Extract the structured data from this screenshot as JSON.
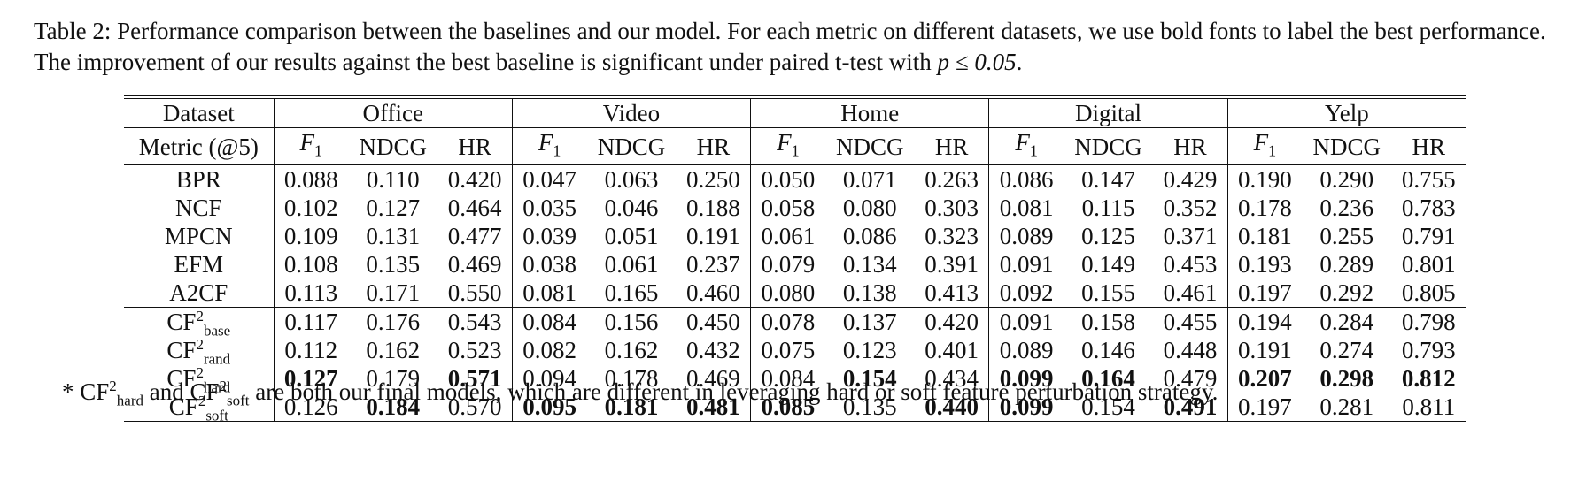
{
  "caption": {
    "prefix": "Table 2: Performance comparison between the baselines and our model. For each metric on different datasets, we use bold fonts to label the best performance. The improvement of our results against the best baseline is significant under paired t-test with ",
    "math": "p ≤ 0.05",
    "suffix": "."
  },
  "table": {
    "dataset_label": "Dataset",
    "metric_label": "Metric (@5)",
    "datasets": [
      "Office",
      "Video",
      "Home",
      "Digital",
      "Yelp"
    ],
    "metrics": [
      {
        "main": "F",
        "sub": "1",
        "italic": true
      },
      {
        "main": "NDCG",
        "sub": "",
        "italic": false
      },
      {
        "main": "HR",
        "sub": "",
        "italic": false
      }
    ],
    "baseline_rows": [
      {
        "name": "BPR",
        "values": [
          "0.088",
          "0.110",
          "0.420",
          "0.047",
          "0.063",
          "0.250",
          "0.050",
          "0.071",
          "0.263",
          "0.086",
          "0.147",
          "0.429",
          "0.190",
          "0.290",
          "0.755"
        ],
        "bold": []
      },
      {
        "name": "NCF",
        "values": [
          "0.102",
          "0.127",
          "0.464",
          "0.035",
          "0.046",
          "0.188",
          "0.058",
          "0.080",
          "0.303",
          "0.081",
          "0.115",
          "0.352",
          "0.178",
          "0.236",
          "0.783"
        ],
        "bold": []
      },
      {
        "name": "MPCN",
        "values": [
          "0.109",
          "0.131",
          "0.477",
          "0.039",
          "0.051",
          "0.191",
          "0.061",
          "0.086",
          "0.323",
          "0.089",
          "0.125",
          "0.371",
          "0.181",
          "0.255",
          "0.791"
        ],
        "bold": []
      },
      {
        "name": "EFM",
        "values": [
          "0.108",
          "0.135",
          "0.469",
          "0.038",
          "0.061",
          "0.237",
          "0.079",
          "0.134",
          "0.391",
          "0.091",
          "0.149",
          "0.453",
          "0.193",
          "0.289",
          "0.801"
        ],
        "bold": []
      },
      {
        "name": "A2CF",
        "values": [
          "0.113",
          "0.171",
          "0.550",
          "0.081",
          "0.165",
          "0.460",
          "0.080",
          "0.138",
          "0.413",
          "0.092",
          "0.155",
          "0.461",
          "0.197",
          "0.292",
          "0.805"
        ],
        "bold": []
      }
    ],
    "model_rows": [
      {
        "name": "CF",
        "sup": "2",
        "sub": "base",
        "values": [
          "0.117",
          "0.176",
          "0.543",
          "0.084",
          "0.156",
          "0.450",
          "0.078",
          "0.137",
          "0.420",
          "0.091",
          "0.158",
          "0.455",
          "0.194",
          "0.284",
          "0.798"
        ],
        "bold": []
      },
      {
        "name": "CF",
        "sup": "2",
        "sub": "rand",
        "values": [
          "0.112",
          "0.162",
          "0.523",
          "0.082",
          "0.162",
          "0.432",
          "0.075",
          "0.123",
          "0.401",
          "0.089",
          "0.146",
          "0.448",
          "0.191",
          "0.274",
          "0.793"
        ],
        "bold": []
      },
      {
        "name": "CF",
        "sup": "2",
        "sub": "hard",
        "values": [
          "0.127",
          "0.179",
          "0.571",
          "0.094",
          "0.178",
          "0.469",
          "0.084",
          "0.154",
          "0.434",
          "0.099",
          "0.164",
          "0.479",
          "0.207",
          "0.298",
          "0.812"
        ],
        "bold": [
          0,
          2,
          7,
          9,
          10,
          12,
          13,
          14
        ]
      },
      {
        "name": "CF",
        "sup": "2",
        "sub": "soft",
        "values": [
          "0.126",
          "0.184",
          "0.570",
          "0.095",
          "0.181",
          "0.481",
          "0.085",
          "0.135",
          "0.440",
          "0.099",
          "0.154",
          "0.491",
          "0.197",
          "0.281",
          "0.811"
        ],
        "bold": [
          1,
          3,
          4,
          5,
          6,
          8,
          9,
          11
        ]
      }
    ]
  },
  "footnote": {
    "star": "*",
    "m1": {
      "name": "CF",
      "sup": "2",
      "sub": "hard"
    },
    "and": "and",
    "m2": {
      "name": "CF",
      "sup": "2",
      "sub": "soft"
    },
    "rest": "are both our final models, which are different in leveraging hard or soft feature perturbation strategy."
  }
}
